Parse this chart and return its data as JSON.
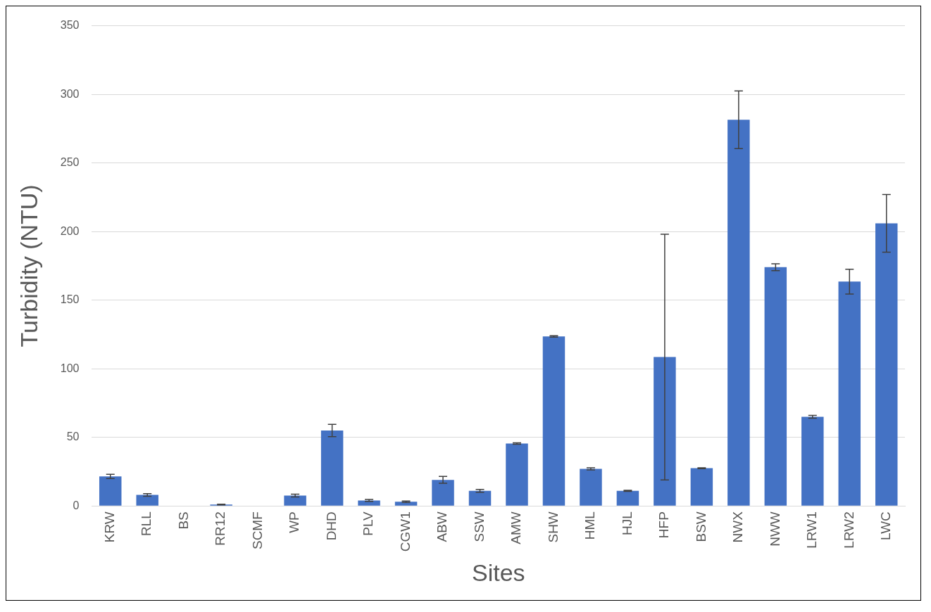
{
  "chart_data": {
    "type": "bar",
    "xlabel": "Sites",
    "ylabel": "Turbidity (NTU)",
    "categories": [
      "KRW",
      "RLL",
      "BS",
      "RR12",
      "SCMF",
      "WP",
      "DHD",
      "PLV",
      "CGW1",
      "ABW",
      "SSW",
      "AMW",
      "SHW",
      "HML",
      "HJL",
      "HFP",
      "BSW",
      "NWX",
      "NWW",
      "LRW1",
      "LRW2",
      "LWC"
    ],
    "values": [
      21.5,
      8,
      null,
      1,
      null,
      7.5,
      55,
      4,
      3,
      19,
      11,
      45.5,
      123.5,
      27,
      11,
      108.5,
      27.5,
      281.5,
      174,
      65,
      163.5,
      206
    ],
    "errors": [
      1.5,
      1,
      null,
      0.3,
      null,
      1,
      4.5,
      0.7,
      0.5,
      2.5,
      1,
      0.5,
      0.5,
      0.8,
      0.4,
      89.5,
      0.3,
      21,
      2.5,
      1,
      9,
      21
    ],
    "color": "#4472c4",
    "ylim": [
      0,
      350
    ],
    "yticks": [
      0,
      50,
      100,
      150,
      200,
      250,
      300,
      350
    ],
    "grid": "y",
    "legend": false
  }
}
